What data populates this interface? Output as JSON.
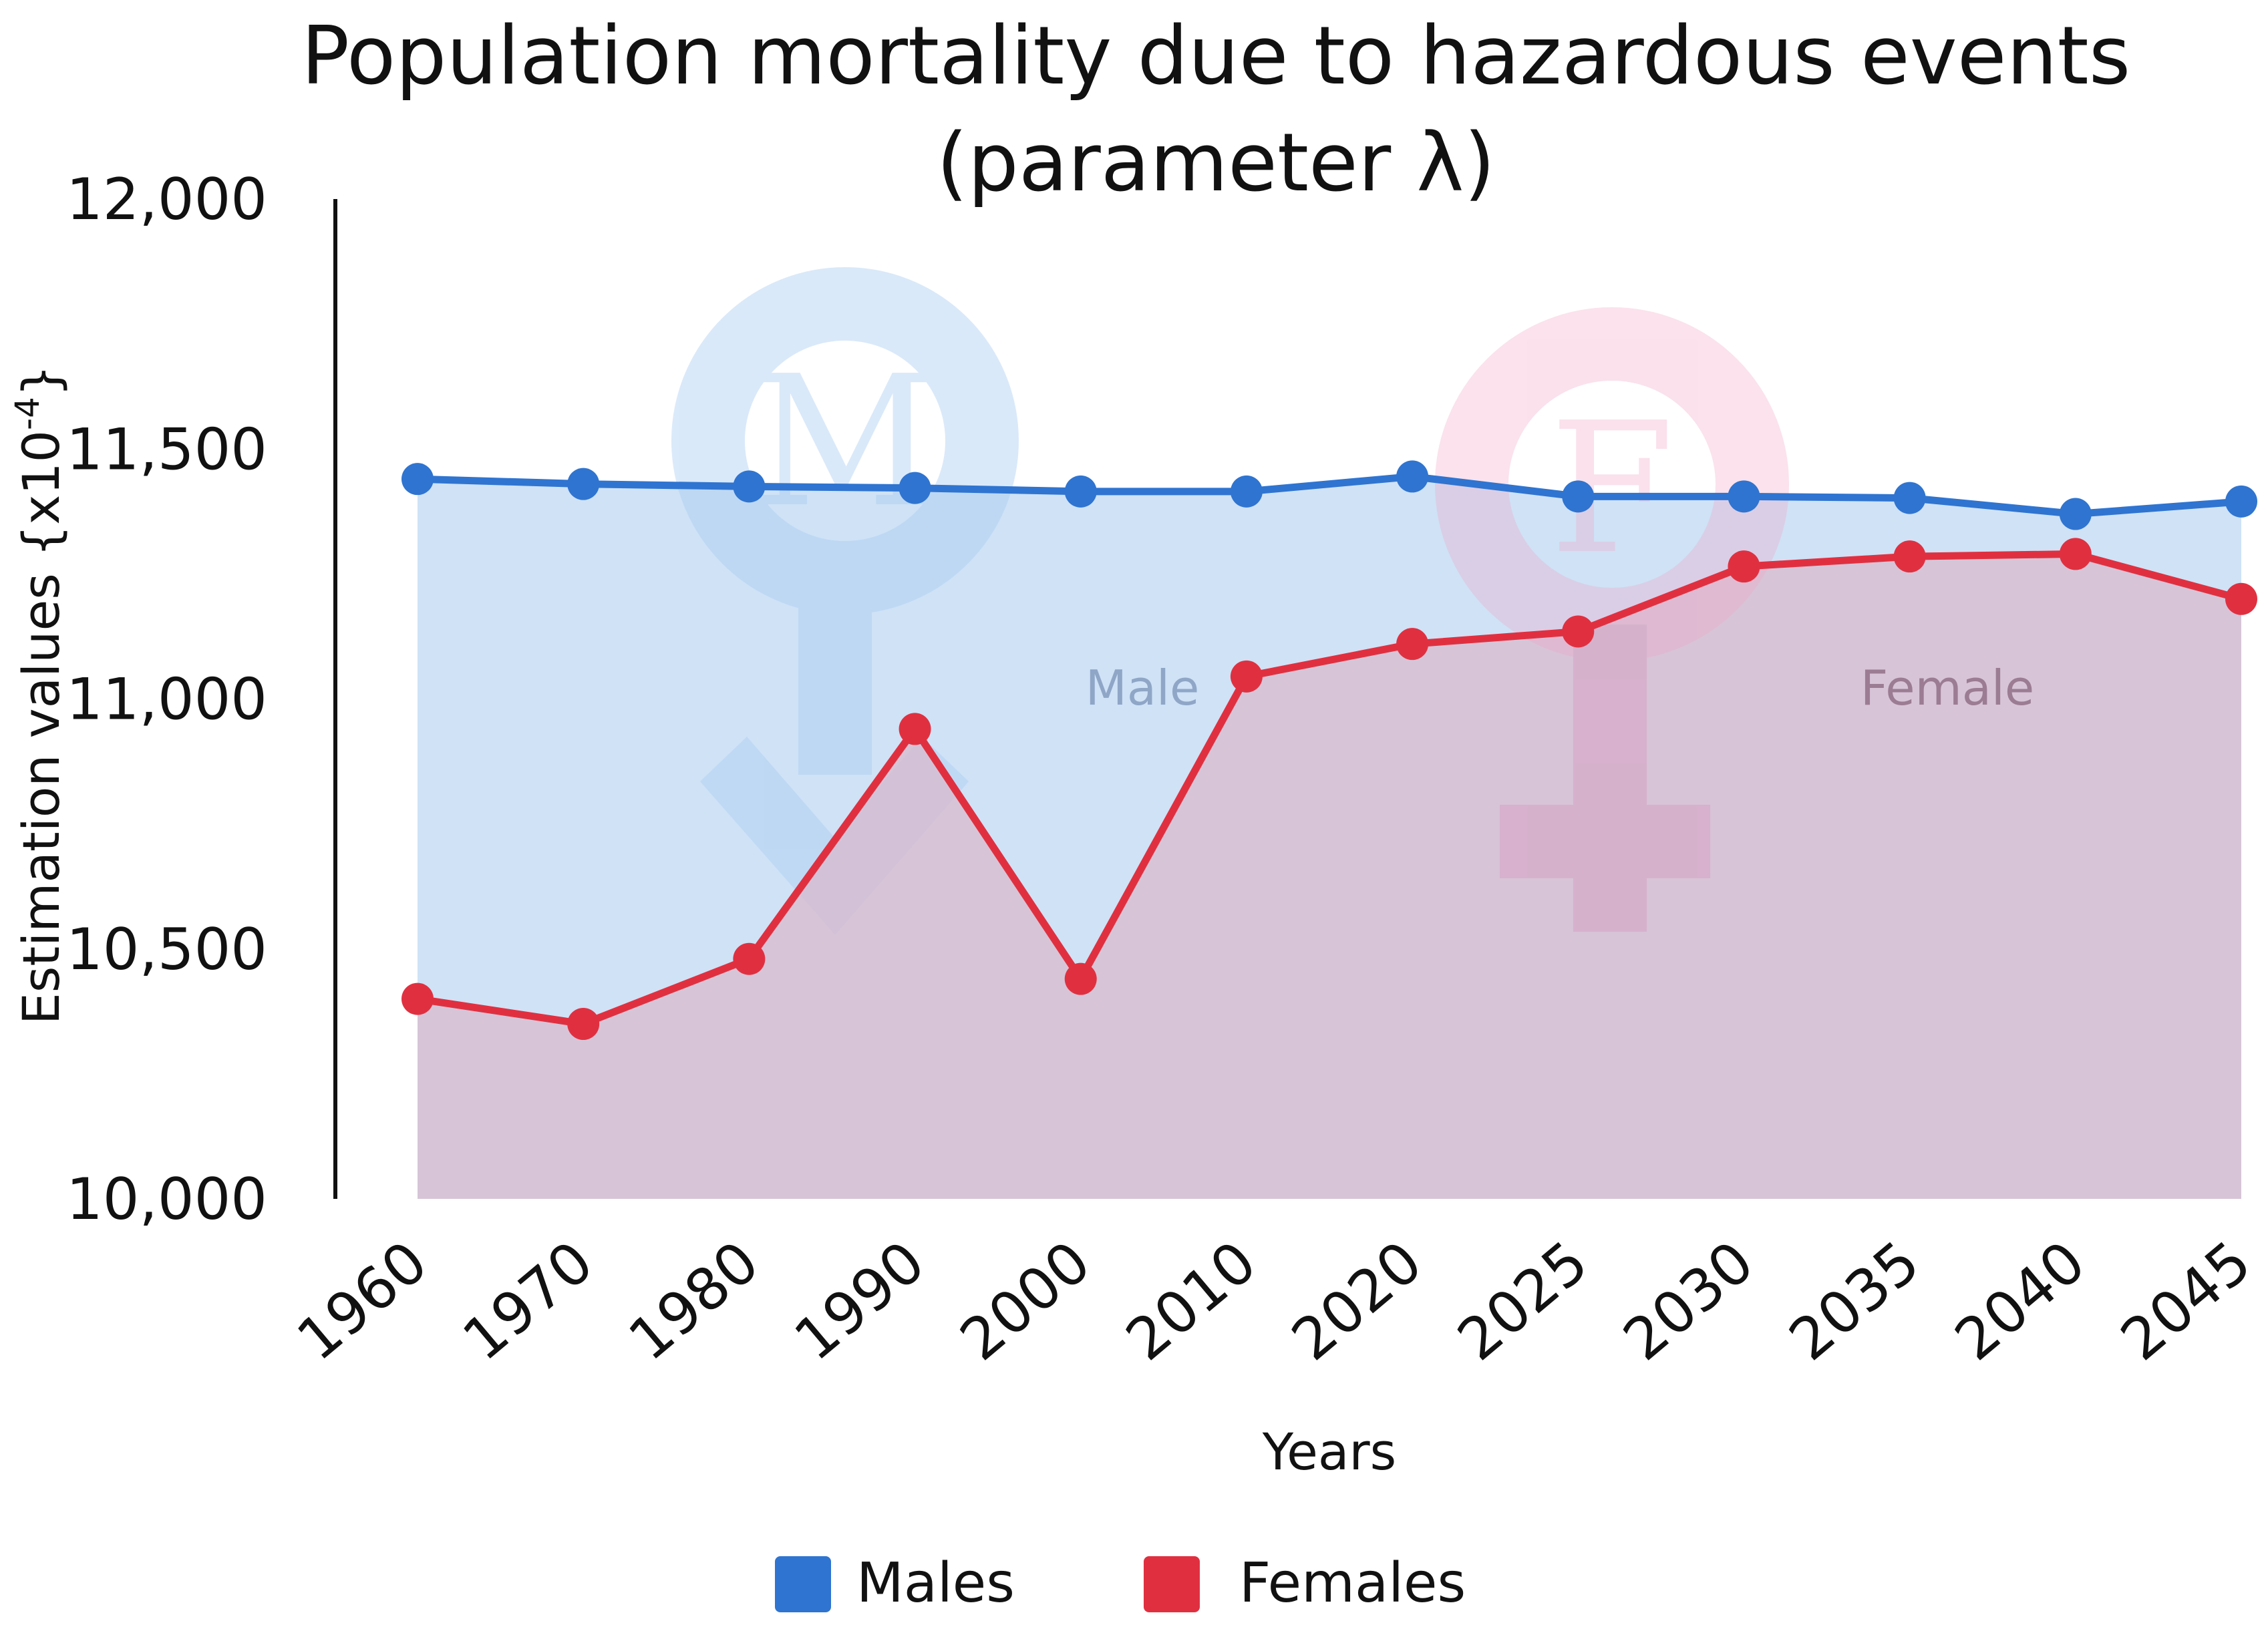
{
  "chart_data": {
    "type": "area",
    "title": [
      "Population mortality due to hazardous events",
      "(parameter λ)"
    ],
    "xlabel": "Years",
    "ylabel": "Estimation values {x10",
    "ylabel_exp": "-4",
    "ylabel_close": "}",
    "ylim": [
      10000,
      12000
    ],
    "yticks": [
      10000,
      10500,
      11000,
      11500,
      12000
    ],
    "ytick_labels": [
      "10,000",
      "10,500",
      "11,000",
      "11,500",
      "12,000"
    ],
    "categories": [
      "1960",
      "1970",
      "1980",
      "1990",
      "2000",
      "2010",
      "2020",
      "2025",
      "2030",
      "2035",
      "2040",
      "2045"
    ],
    "series": [
      {
        "name": "Males",
        "area_label": "Male",
        "symbol_letter": "M",
        "color": "#2F74D0",
        "fill": "#CCE0F5",
        "values": [
          11440,
          11430,
          11425,
          11422,
          11415,
          11415,
          11445,
          11405,
          11405,
          11402,
          11370,
          11395
        ]
      },
      {
        "name": "Females",
        "area_label": "Female",
        "symbol_letter": "F",
        "color": "#E03040",
        "fill": "#D8BBCE",
        "values": [
          10400,
          10350,
          10480,
          10940,
          10440,
          11045,
          11110,
          11135,
          11265,
          11285,
          11290,
          11200
        ]
      }
    ],
    "grid": false,
    "legend": "bottom-center"
  }
}
